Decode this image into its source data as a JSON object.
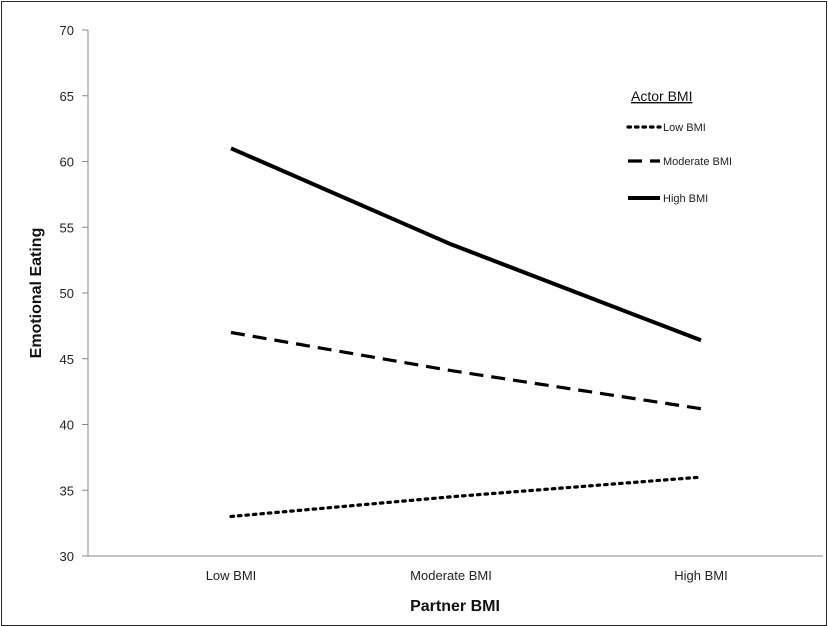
{
  "chart_data": {
    "type": "line",
    "title": "",
    "xlabel": "Partner BMI",
    "ylabel": "Emotional Eating",
    "categories": [
      "Low BMI",
      "Moderate BMI",
      "High BMI"
    ],
    "ylim": [
      30,
      70
    ],
    "yticks": [
      30,
      35,
      40,
      45,
      50,
      55,
      60,
      65,
      70
    ],
    "grid": false,
    "legend": {
      "title": "Actor BMI",
      "placement": "top-right"
    },
    "series": [
      {
        "name": "Low BMI",
        "values": [
          33.0,
          34.5,
          36.0
        ],
        "style": "dotted",
        "color": "#000000"
      },
      {
        "name": "Moderate BMI",
        "values": [
          47.0,
          44.1,
          41.2
        ],
        "style": "dashed",
        "color": "#000000"
      },
      {
        "name": "High BMI",
        "values": [
          61.0,
          53.7,
          46.4
        ],
        "style": "solid",
        "color": "#000000"
      }
    ]
  }
}
